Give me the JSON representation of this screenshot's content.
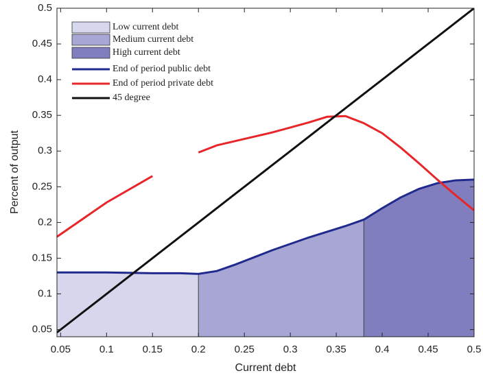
{
  "chart_data": {
    "type": "line",
    "x_label": "Current debt",
    "y_label": "Percent of output",
    "xlim": [
      0.046,
      0.5
    ],
    "ylim": [
      0.04,
      0.5
    ],
    "xticks": [
      0.05,
      0.1,
      0.15,
      0.2,
      0.25,
      0.3,
      0.35,
      0.4,
      0.45,
      0.5
    ],
    "yticks": [
      0.05,
      0.1,
      0.15,
      0.2,
      0.25,
      0.3,
      0.35,
      0.4,
      0.45,
      0.5
    ],
    "x": [
      0.046,
      0.1,
      0.15,
      0.18,
      0.2,
      0.22,
      0.24,
      0.26,
      0.28,
      0.3,
      0.32,
      0.34,
      0.36,
      0.38,
      0.4,
      0.42,
      0.44,
      0.46,
      0.48,
      0.5
    ],
    "series": [
      {
        "name": "Low current debt",
        "kind": "area",
        "color": "#d6d6ec",
        "values": [
          0.13,
          0.13,
          0.129,
          0.129,
          0.128,
          null,
          null,
          null,
          null,
          null,
          null,
          null,
          null,
          null,
          null,
          null,
          null,
          null,
          null,
          null
        ]
      },
      {
        "name": "Medium current debt",
        "kind": "area",
        "color": "#a8a6d4",
        "values": [
          null,
          null,
          null,
          null,
          0.128,
          0.132,
          0.141,
          0.151,
          0.161,
          0.17,
          0.179,
          0.187,
          0.195,
          0.204,
          null,
          null,
          null,
          null,
          null,
          null
        ]
      },
      {
        "name": "High current debt",
        "kind": "area",
        "color": "#807ebe",
        "values": [
          null,
          null,
          null,
          null,
          null,
          null,
          null,
          null,
          null,
          null,
          null,
          null,
          null,
          0.204,
          0.22,
          0.235,
          0.247,
          0.255,
          0.259,
          0.26
        ]
      },
      {
        "name": "End of period public debt",
        "kind": "line",
        "color": "#1f2a8c",
        "values": [
          0.13,
          0.13,
          0.129,
          0.129,
          0.128,
          0.132,
          0.141,
          0.151,
          0.161,
          0.17,
          0.179,
          0.187,
          0.195,
          0.204,
          0.22,
          0.235,
          0.247,
          0.255,
          0.259,
          0.26
        ]
      },
      {
        "name": "End of period private debt",
        "kind": "line",
        "color": "#e8262a",
        "values": [
          0.18,
          0.228,
          0.265,
          null,
          0.298,
          0.308,
          0.314,
          0.32,
          0.326,
          0.333,
          0.34,
          0.348,
          0.349,
          0.339,
          0.325,
          0.305,
          0.283,
          0.26,
          0.238,
          0.217
        ]
      },
      {
        "name": "45 degree",
        "kind": "line",
        "color": "#111111",
        "values": [
          0.046,
          0.1,
          0.15,
          0.18,
          0.2,
          0.22,
          0.24,
          0.26,
          0.28,
          0.3,
          0.32,
          0.34,
          0.36,
          0.38,
          0.4,
          0.42,
          0.44,
          0.46,
          0.48,
          0.5
        ]
      }
    ]
  }
}
